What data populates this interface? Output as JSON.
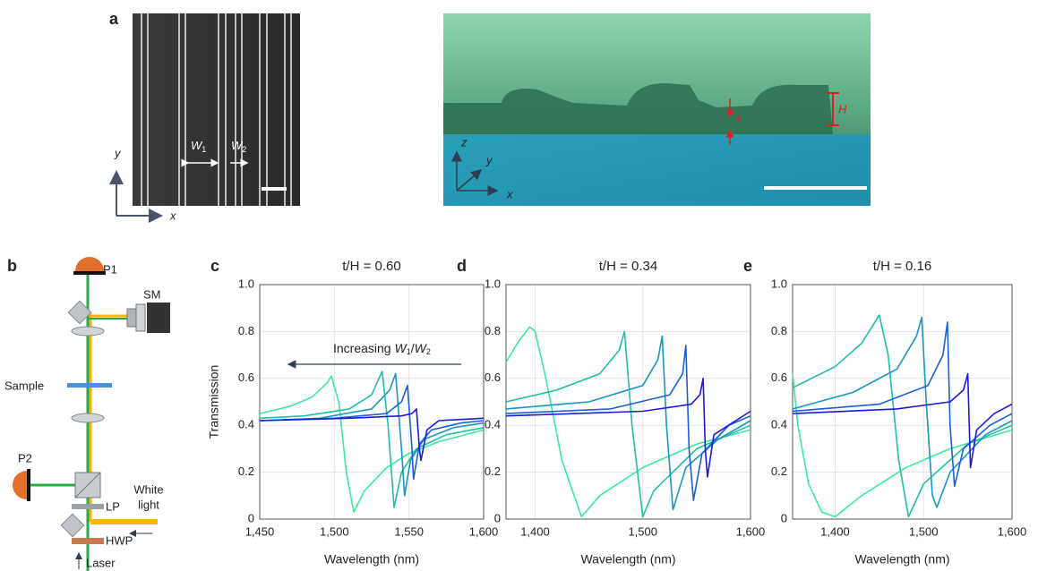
{
  "panel_a": {
    "letter": "a",
    "w1": {
      "main": "W",
      "sub": "1"
    },
    "w2": {
      "main": "W",
      "sub": "2"
    },
    "axis_y": "y",
    "axis_x": "x",
    "axis3_z": "z",
    "axis3_y": "y",
    "axis3_x": "x",
    "t": "t",
    "H": "H"
  },
  "panel_b": {
    "letter": "b",
    "p1": "P1",
    "sm": "SM",
    "sample": "Sample",
    "p2": "P2",
    "white_light": [
      "White",
      "light"
    ],
    "lp": "LP",
    "hwp": "HWP",
    "laser": "Laser"
  },
  "chart_data": [
    {
      "type": "line",
      "panel": "c",
      "title": "t/H = 0.60",
      "xlabel": "Wavelength (nm)",
      "ylabel": "Transmission",
      "annotation": [
        "Increasing ",
        "W",
        "1",
        "/",
        "W",
        "2"
      ],
      "xlim": [
        1450,
        1600
      ],
      "xticks": [
        {
          "value": 1450,
          "label": "1,450"
        },
        {
          "value": 1500,
          "label": "1,500"
        },
        {
          "value": 1550,
          "label": "1,550"
        },
        {
          "value": 1600,
          "label": "1,600"
        }
      ],
      "ylim": [
        0,
        1
      ],
      "yticks": [
        0,
        0.2,
        0.4,
        0.6,
        0.8,
        {
          "value": 1,
          "label": "1.0"
        }
      ],
      "grid": true,
      "series": [
        {
          "color": "#3ee89c",
          "x": [
            1450,
            1470,
            1485,
            1495,
            1498,
            1503,
            1508,
            1513,
            1520,
            1535,
            1550,
            1570,
            1600
          ],
          "values": [
            0.45,
            0.48,
            0.52,
            0.58,
            0.61,
            0.5,
            0.2,
            0.03,
            0.12,
            0.22,
            0.28,
            0.33,
            0.38
          ]
        },
        {
          "color": "#20bfa8",
          "x": [
            1450,
            1480,
            1510,
            1525,
            1532,
            1536,
            1540,
            1545,
            1555,
            1575,
            1600
          ],
          "values": [
            0.43,
            0.44,
            0.47,
            0.53,
            0.63,
            0.4,
            0.05,
            0.2,
            0.3,
            0.36,
            0.39
          ]
        },
        {
          "color": "#1896c2",
          "x": [
            1450,
            1490,
            1525,
            1537,
            1541,
            1545,
            1547,
            1551,
            1560,
            1580,
            1600
          ],
          "values": [
            0.42,
            0.43,
            0.47,
            0.55,
            0.62,
            0.3,
            0.1,
            0.25,
            0.34,
            0.39,
            0.41
          ]
        },
        {
          "color": "#1a5fd8",
          "x": [
            1450,
            1500,
            1535,
            1545,
            1549,
            1552,
            1553,
            1557,
            1565,
            1585,
            1600
          ],
          "values": [
            0.42,
            0.43,
            0.45,
            0.5,
            0.57,
            0.3,
            0.17,
            0.32,
            0.38,
            0.41,
            0.42
          ]
        },
        {
          "color": "#1a1ae0",
          "x": [
            1450,
            1510,
            1545,
            1552,
            1555,
            1557,
            1558,
            1562,
            1570,
            1600
          ],
          "values": [
            0.42,
            0.43,
            0.44,
            0.45,
            0.47,
            0.3,
            0.25,
            0.38,
            0.42,
            0.43
          ]
        }
      ]
    },
    {
      "type": "line",
      "panel": "d",
      "title": "t/H = 0.34",
      "xlabel": "Wavelength (nm)",
      "xlim": [
        1373,
        1600
      ],
      "xticks": [
        {
          "value": 1400,
          "label": "1,400"
        },
        {
          "value": 1500,
          "label": "1,500"
        },
        {
          "value": 1600,
          "label": "1,600"
        }
      ],
      "ylim": [
        0,
        1
      ],
      "yticks": [
        0,
        0.2,
        0.4,
        0.6,
        0.8,
        {
          "value": 1,
          "label": "1.0"
        }
      ],
      "grid": true,
      "series": [
        {
          "color": "#3ee89c",
          "x": [
            1373,
            1385,
            1395,
            1400,
            1410,
            1425,
            1443,
            1460,
            1500,
            1550,
            1600
          ],
          "values": [
            0.67,
            0.76,
            0.82,
            0.8,
            0.6,
            0.25,
            0.01,
            0.1,
            0.22,
            0.32,
            0.38
          ]
        },
        {
          "color": "#20bfa8",
          "x": [
            1373,
            1420,
            1460,
            1478,
            1483,
            1490,
            1500,
            1510,
            1550,
            1600
          ],
          "values": [
            0.5,
            0.55,
            0.62,
            0.72,
            0.8,
            0.4,
            0.01,
            0.12,
            0.3,
            0.4
          ]
        },
        {
          "color": "#1896c2",
          "x": [
            1373,
            1450,
            1500,
            1514,
            1518,
            1522,
            1528,
            1540,
            1570,
            1600
          ],
          "values": [
            0.47,
            0.5,
            0.57,
            0.68,
            0.78,
            0.4,
            0.04,
            0.22,
            0.34,
            0.42
          ]
        },
        {
          "color": "#1a5fd8",
          "x": [
            1373,
            1470,
            1525,
            1537,
            1540,
            1543,
            1547,
            1555,
            1580,
            1600
          ],
          "values": [
            0.45,
            0.47,
            0.53,
            0.62,
            0.74,
            0.3,
            0.08,
            0.28,
            0.4,
            0.44
          ]
        },
        {
          "color": "#1a1ae0",
          "x": [
            1373,
            1500,
            1545,
            1553,
            1556,
            1558,
            1560,
            1566,
            1600
          ],
          "values": [
            0.44,
            0.46,
            0.49,
            0.53,
            0.6,
            0.3,
            0.18,
            0.36,
            0.46
          ]
        }
      ]
    },
    {
      "type": "line",
      "panel": "e",
      "title": "t/H = 0.16",
      "xlabel": "Wavelength (nm)",
      "xlim": [
        1352,
        1600
      ],
      "xticks": [
        {
          "value": 1400,
          "label": "1,400"
        },
        {
          "value": 1500,
          "label": "1,500"
        },
        {
          "value": 1600,
          "label": "1,600"
        }
      ],
      "ylim": [
        0,
        1
      ],
      "yticks": [
        0,
        0.2,
        0.4,
        0.6,
        0.8,
        {
          "value": 1,
          "label": "1.0"
        }
      ],
      "grid": true,
      "series": [
        {
          "color": "#3ee89c",
          "x": [
            1352,
            1358,
            1370,
            1385,
            1400,
            1430,
            1480,
            1530,
            1600
          ],
          "values": [
            0.62,
            0.4,
            0.15,
            0.03,
            0.01,
            0.1,
            0.22,
            0.3,
            0.38
          ]
        },
        {
          "color": "#20bfa8",
          "x": [
            1352,
            1400,
            1430,
            1445,
            1450,
            1460,
            1472,
            1483,
            1500,
            1550,
            1600
          ],
          "values": [
            0.56,
            0.65,
            0.75,
            0.84,
            0.87,
            0.7,
            0.25,
            0.01,
            0.15,
            0.32,
            0.4
          ]
        },
        {
          "color": "#1896c2",
          "x": [
            1352,
            1420,
            1470,
            1492,
            1498,
            1503,
            1510,
            1515,
            1530,
            1570,
            1600
          ],
          "values": [
            0.47,
            0.54,
            0.64,
            0.78,
            0.86,
            0.5,
            0.1,
            0.05,
            0.2,
            0.36,
            0.42
          ]
        },
        {
          "color": "#1a5fd8",
          "x": [
            1352,
            1450,
            1505,
            1522,
            1527,
            1530,
            1535,
            1545,
            1575,
            1600
          ],
          "values": [
            0.46,
            0.49,
            0.57,
            0.7,
            0.84,
            0.4,
            0.14,
            0.3,
            0.4,
            0.45
          ]
        },
        {
          "color": "#1a1ae0",
          "x": [
            1352,
            1470,
            1530,
            1545,
            1550,
            1553,
            1560,
            1580,
            1600
          ],
          "values": [
            0.45,
            0.47,
            0.5,
            0.55,
            0.62,
            0.22,
            0.38,
            0.45,
            0.49
          ]
        }
      ]
    }
  ]
}
